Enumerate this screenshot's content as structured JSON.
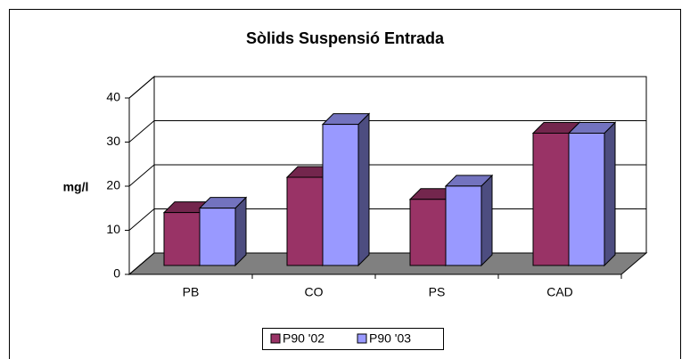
{
  "chart_data": {
    "type": "bar3d",
    "title": "Sòlids Suspensió Entrada",
    "y_label": "mg/l",
    "categories": [
      "PB",
      "CO",
      "PS",
      "CAD"
    ],
    "series": [
      {
        "name": "P90 '02",
        "color": "#993366",
        "values": [
          12,
          20,
          15,
          30
        ]
      },
      {
        "name": "P90 '03",
        "color": "#9999ff",
        "values": [
          13,
          32,
          18,
          30
        ]
      }
    ],
    "ylim": [
      0,
      40
    ],
    "yticks": [
      0,
      10,
      20,
      30,
      40
    ],
    "grid": true,
    "legend": "bottom"
  }
}
